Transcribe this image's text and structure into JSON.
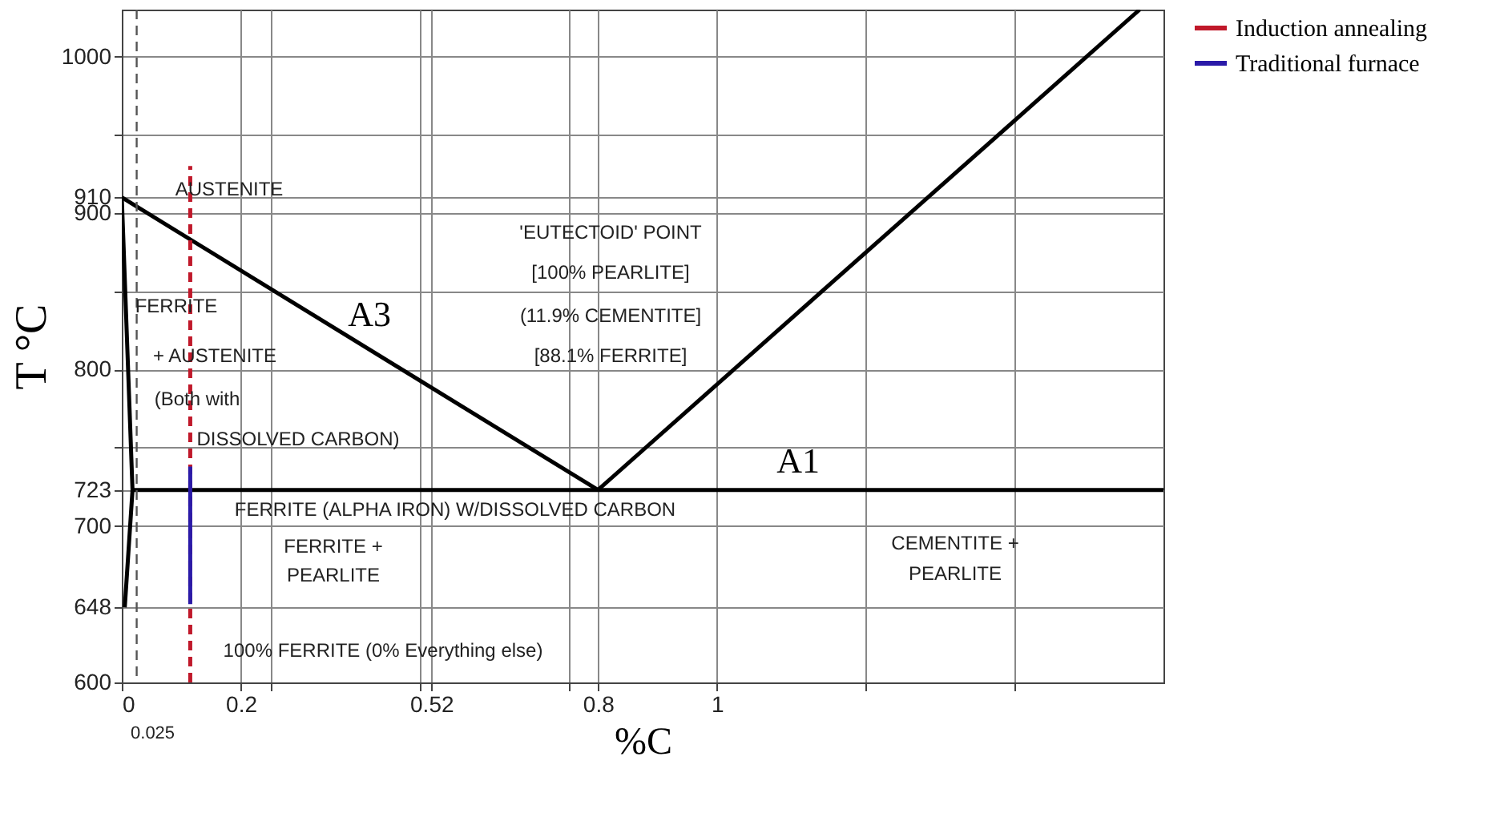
{
  "chart_data": {
    "type": "line",
    "xlabel": "%C",
    "ylabel": "T °C",
    "xlim": [
      0,
      1.75
    ],
    "ylim": [
      600,
      1030
    ],
    "xticks": [
      0,
      0.2,
      {
        "value": 0.25,
        "label": null
      },
      {
        "value": 0.5,
        "label": null
      },
      0.52,
      {
        "value": 0.75,
        "label": null
      },
      0.8,
      1,
      {
        "value": 1.25,
        "label": null
      },
      {
        "value": 1.5,
        "label": null
      }
    ],
    "yticks": [
      600,
      648,
      700,
      723,
      {
        "value": 750,
        "label": null
      },
      800,
      {
        "value": 850,
        "label": null
      },
      900,
      910,
      {
        "value": 950,
        "label": null
      },
      1000
    ],
    "grid": true,
    "legend": "right",
    "series": [
      {
        "color": "#000000",
        "x": [
          0,
          0.8
        ],
        "values": [
          910,
          723
        ]
      },
      {
        "color": "#000000",
        "x": [
          0.018,
          1.75
        ],
        "values": [
          723,
          723
        ]
      },
      {
        "color": "#000000",
        "x": [
          0.8,
          1.71
        ],
        "values": [
          723,
          1030
        ]
      },
      {
        "color": "#000000",
        "x": [
          0,
          0.018,
          0.005
        ],
        "values": [
          910,
          723,
          648
        ]
      },
      {
        "name": "Induction annealing",
        "color": "#c0182a",
        "line_style": "dashed",
        "x": [
          0.115,
          0.115
        ],
        "values": [
          600,
          930
        ]
      },
      {
        "name": "Traditional furnace",
        "color": "#2a1aa8",
        "x": [
          0.115,
          0.115
        ],
        "values": [
          650,
          738
        ]
      }
    ],
    "ref_lines": [
      {
        "axis": "x",
        "value": 0.025,
        "line_style": "dashed",
        "color": "#555555"
      }
    ],
    "annotations": [
      "AUSTENITE",
      "FERRITE",
      "+ AUSTENITE",
      "(Both with",
      "DISSOLVED CARBON)",
      "'EUTECTOID' POINT",
      "[100% PEARLITE]",
      "(11.9% CEMENTITE]",
      "[88.1% FERRITE]",
      "FERRITE (ALPHA IRON) W/DISSOLVED CARBON",
      "FERRITE +",
      "PEARLITE",
      "CEMENTITE +",
      "PEARLITE",
      "100% FERRITE (0% Everything else)",
      {
        "text": "A3",
        "x": 0.4,
        "y": 816.5
      },
      {
        "text": "A1",
        "x": 1.12,
        "y": 723
      },
      {
        "text": "0.025",
        "x": 0.025,
        "y": 600
      }
    ]
  }
}
